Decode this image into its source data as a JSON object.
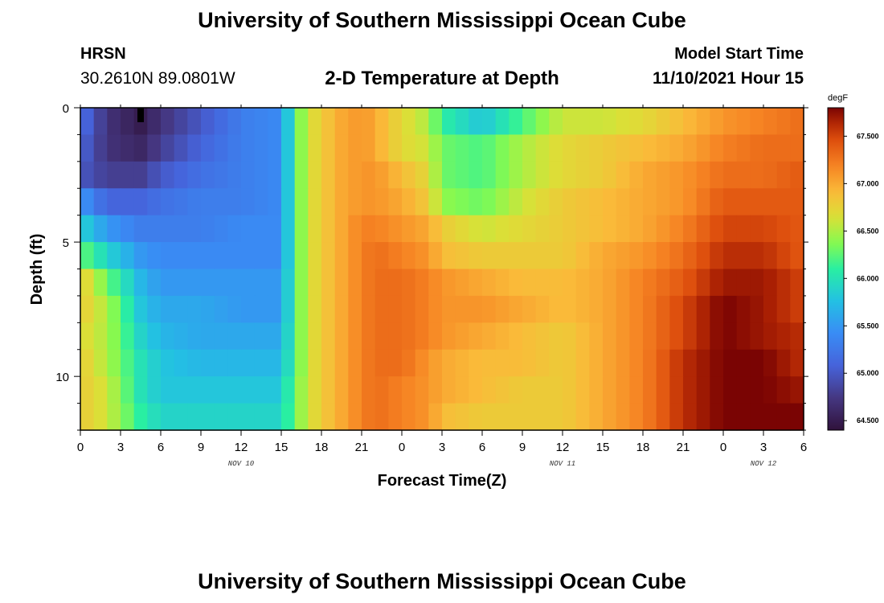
{
  "header": {
    "title": "University of Southern Mississippi Ocean Cube",
    "station": "HRSN",
    "coords": "30.2610N  89.0801W",
    "subtitle": "2-D Temperature at Depth",
    "model_start_label": "Model Start Time",
    "model_start_value": "11/10/2021 Hour 15"
  },
  "footer": {
    "title": "University of Southern Mississippi Ocean Cube"
  },
  "chart_data": {
    "type": "heatmap",
    "title": "2-D Temperature at Depth",
    "xlabel": "Forecast Time(Z)",
    "ylabel": "Depth (ft)",
    "x_ticks": [
      "0",
      "3",
      "6",
      "9",
      "12",
      "15",
      "18",
      "21",
      "0",
      "3",
      "6",
      "9",
      "12",
      "15",
      "18",
      "21",
      "0",
      "3",
      "6"
    ],
    "date_labels": [
      {
        "label": "NOV 10",
        "hour": 12
      },
      {
        "label": "NOV 11",
        "hour": 36
      },
      {
        "label": "NOV 12",
        "hour": 51
      }
    ],
    "x_range_hours": [
      0,
      54
    ],
    "y_ticks": [
      0,
      5,
      10
    ],
    "y_range_ft": [
      0,
      12
    ],
    "y_inverted": true,
    "colorbar": {
      "unit": "degF",
      "min": 64.4,
      "max": 67.8,
      "ticks": [
        "64.500",
        "65.000",
        "65.500",
        "66.000",
        "66.500",
        "67.000",
        "67.500"
      ]
    },
    "depth_rows_ft": [
      0,
      1,
      2,
      3,
      4,
      5,
      6,
      7,
      8,
      9,
      10,
      11
    ],
    "time_keys_hours": [
      0,
      2,
      4.5,
      6,
      9,
      12,
      15,
      16,
      17,
      18,
      19.5,
      21,
      22,
      24,
      26,
      27,
      30,
      33,
      36,
      39,
      42,
      45,
      48,
      51,
      54
    ],
    "temperature_degF": [
      [
        65.2,
        64.7,
        64.5,
        64.7,
        65.0,
        65.3,
        65.4,
        66.2,
        66.6,
        66.8,
        67.0,
        67.1,
        67.0,
        66.7,
        66.5,
        66.1,
        65.8,
        66.2,
        66.6,
        66.6,
        66.7,
        66.9,
        67.1,
        67.2,
        67.3
      ],
      [
        65.1,
        64.7,
        64.6,
        64.8,
        65.1,
        65.3,
        65.4,
        66.2,
        66.6,
        66.8,
        67.0,
        67.1,
        67.0,
        66.7,
        66.6,
        66.3,
        66.2,
        66.5,
        66.7,
        66.8,
        66.9,
        67.0,
        67.2,
        67.3,
        67.3
      ],
      [
        65.0,
        64.8,
        64.8,
        65.0,
        65.2,
        65.3,
        65.4,
        66.2,
        66.6,
        66.8,
        67.0,
        67.1,
        67.1,
        66.9,
        66.7,
        66.3,
        66.2,
        66.5,
        66.7,
        66.8,
        67.0,
        67.1,
        67.3,
        67.3,
        67.4
      ],
      [
        65.5,
        65.1,
        65.1,
        65.2,
        65.3,
        65.3,
        65.4,
        66.2,
        66.6,
        66.8,
        67.0,
        67.1,
        67.1,
        67.0,
        66.8,
        66.4,
        66.3,
        66.6,
        66.8,
        66.9,
        67.0,
        67.1,
        67.4,
        67.4,
        67.4
      ],
      [
        65.9,
        65.5,
        65.3,
        65.3,
        65.3,
        65.4,
        65.4,
        66.2,
        66.6,
        66.8,
        67.0,
        67.2,
        67.2,
        67.1,
        67.0,
        66.8,
        66.6,
        66.7,
        66.8,
        66.9,
        67.0,
        67.2,
        67.5,
        67.5,
        67.4
      ],
      [
        66.3,
        65.9,
        65.5,
        65.4,
        65.4,
        65.4,
        65.4,
        66.2,
        66.6,
        66.8,
        67.0,
        67.2,
        67.3,
        67.2,
        67.1,
        66.9,
        66.8,
        66.8,
        66.8,
        67.0,
        67.1,
        67.3,
        67.6,
        67.6,
        67.4
      ],
      [
        66.8,
        66.3,
        65.7,
        65.5,
        65.5,
        65.5,
        65.5,
        66.2,
        66.6,
        66.8,
        67.0,
        67.2,
        67.3,
        67.3,
        67.2,
        67.1,
        67.0,
        66.9,
        66.9,
        67.0,
        67.2,
        67.4,
        67.7,
        67.7,
        67.5
      ],
      [
        66.8,
        66.5,
        65.8,
        65.6,
        65.6,
        65.5,
        65.5,
        66.2,
        66.6,
        66.8,
        67.0,
        67.2,
        67.3,
        67.3,
        67.2,
        67.1,
        67.1,
        67.0,
        66.9,
        67.0,
        67.2,
        67.5,
        67.8,
        67.7,
        67.5
      ],
      [
        66.7,
        66.5,
        65.9,
        65.7,
        65.6,
        65.6,
        65.6,
        66.2,
        66.6,
        66.8,
        67.0,
        67.2,
        67.3,
        67.3,
        67.2,
        67.1,
        67.0,
        66.9,
        66.8,
        67.0,
        67.2,
        67.5,
        67.8,
        67.7,
        67.6
      ],
      [
        66.8,
        66.5,
        66.0,
        65.8,
        65.7,
        65.7,
        65.7,
        66.2,
        66.6,
        66.8,
        67.0,
        67.2,
        67.3,
        67.3,
        67.1,
        67.0,
        66.9,
        66.9,
        66.8,
        67.0,
        67.2,
        67.6,
        67.8,
        67.8,
        67.6
      ],
      [
        66.8,
        66.6,
        66.0,
        65.8,
        65.8,
        65.8,
        65.8,
        66.3,
        66.6,
        66.8,
        67.0,
        67.2,
        67.3,
        67.2,
        67.1,
        67.0,
        66.9,
        66.8,
        66.8,
        67.0,
        67.2,
        67.6,
        67.8,
        67.8,
        67.7
      ],
      [
        66.8,
        66.6,
        66.1,
        65.9,
        65.9,
        65.9,
        65.9,
        66.3,
        66.6,
        66.8,
        67.0,
        67.2,
        67.3,
        67.2,
        67.1,
        66.9,
        66.8,
        66.8,
        66.8,
        67.0,
        67.2,
        67.6,
        67.8,
        67.8,
        67.8
      ]
    ]
  }
}
